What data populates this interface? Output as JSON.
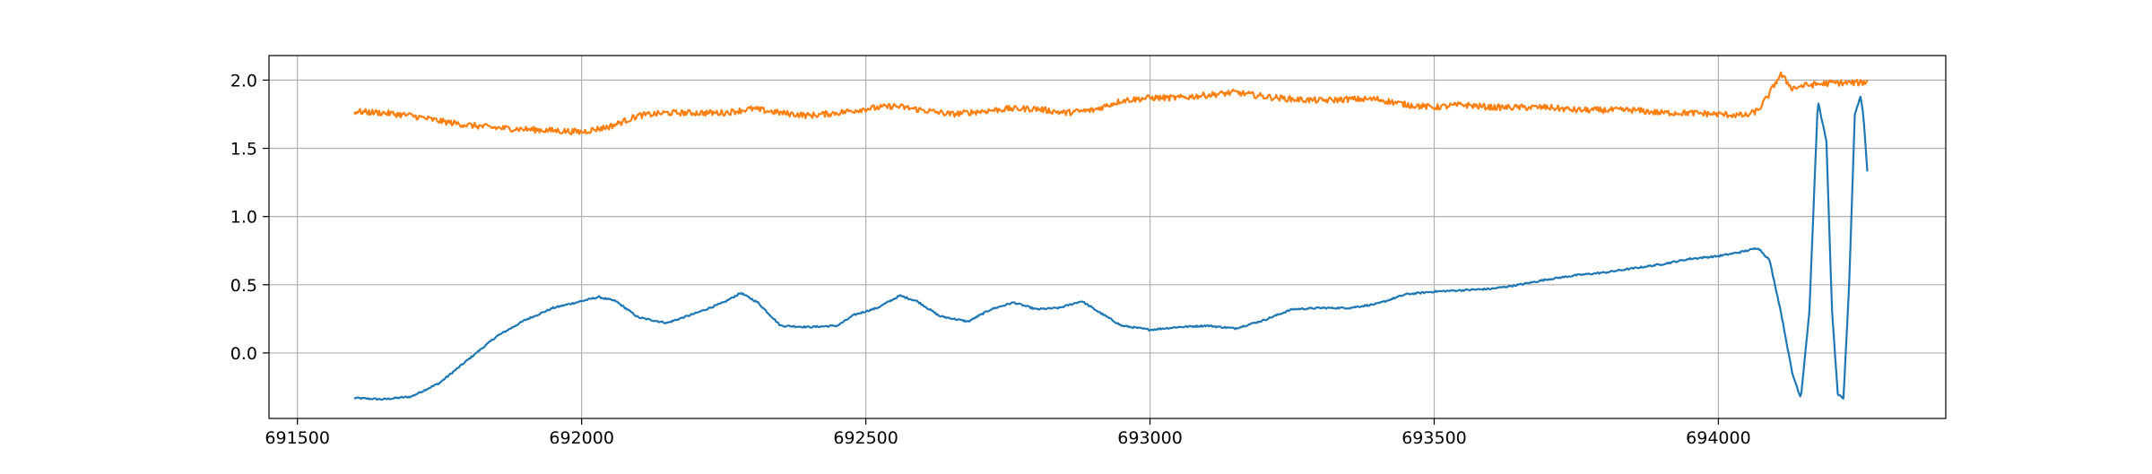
{
  "chart_data": {
    "type": "line",
    "title": "",
    "xlabel": "",
    "ylabel": "",
    "xlim": [
      691450,
      694400
    ],
    "ylim": [
      -0.48,
      2.18
    ],
    "xticks": [
      691500,
      692000,
      692500,
      693000,
      693500,
      694000
    ],
    "xtick_labels": [
      "691500",
      "692000",
      "692500",
      "693000",
      "693500",
      "694000"
    ],
    "yticks": [
      0.0,
      0.5,
      1.0,
      1.5,
      2.0
    ],
    "ytick_labels": [
      "0.0",
      "0.5",
      "1.0",
      "1.5",
      "2.0"
    ],
    "grid": true,
    "legend": "none",
    "series": [
      {
        "color": "#1f77b4",
        "noise": 0.006,
        "x": [
          691600,
          691650,
          691700,
          691750,
          691800,
          691850,
          691900,
          691950,
          692000,
          692030,
          692060,
          692100,
          692150,
          692200,
          692250,
          692280,
          692310,
          692350,
          692400,
          692450,
          692480,
          692520,
          692560,
          692590,
          692630,
          692680,
          692720,
          692760,
          692800,
          692840,
          692880,
          692910,
          692950,
          693000,
          693050,
          693100,
          693150,
          693200,
          693250,
          693300,
          693350,
          693400,
          693450,
          693500,
          693550,
          693600,
          693650,
          693700,
          693750,
          693800,
          693850,
          693900,
          693950,
          694000,
          694040,
          694070,
          694090,
          694110,
          694130,
          694145,
          694160,
          694175,
          694190,
          694200,
          694210,
          694220,
          694230,
          694240,
          694250,
          694255,
          694262
        ],
        "y": [
          -0.33,
          -0.34,
          -0.32,
          -0.22,
          -0.05,
          0.12,
          0.24,
          0.33,
          0.38,
          0.41,
          0.38,
          0.26,
          0.22,
          0.29,
          0.37,
          0.44,
          0.37,
          0.2,
          0.19,
          0.2,
          0.28,
          0.33,
          0.42,
          0.38,
          0.27,
          0.23,
          0.32,
          0.37,
          0.32,
          0.33,
          0.38,
          0.3,
          0.2,
          0.17,
          0.19,
          0.2,
          0.18,
          0.24,
          0.32,
          0.33,
          0.33,
          0.36,
          0.43,
          0.45,
          0.46,
          0.47,
          0.5,
          0.54,
          0.57,
          0.59,
          0.62,
          0.65,
          0.69,
          0.71,
          0.74,
          0.77,
          0.68,
          0.3,
          -0.15,
          -0.33,
          0.3,
          1.85,
          1.55,
          0.3,
          -0.3,
          -0.34,
          0.5,
          1.75,
          1.88,
          1.75,
          1.33
        ]
      },
      {
        "color": "#ff7f0e",
        "noise": 0.022,
        "x": [
          691600,
          691650,
          691700,
          691750,
          691800,
          691850,
          691900,
          691950,
          692000,
          692050,
          692100,
          692150,
          692200,
          692250,
          692300,
          692350,
          692400,
          692450,
          692500,
          692550,
          692600,
          692650,
          692700,
          692750,
          692800,
          692850,
          692900,
          692950,
          693000,
          693050,
          693100,
          693150,
          693200,
          693250,
          693300,
          693350,
          693400,
          693450,
          693500,
          693550,
          693600,
          693650,
          693700,
          693750,
          693800,
          693850,
          693900,
          693950,
          694000,
          694050,
          694070,
          694090,
          694100,
          694110,
          694130,
          694150,
          694200,
          694250,
          694262
        ],
        "y": [
          1.77,
          1.76,
          1.74,
          1.7,
          1.67,
          1.65,
          1.64,
          1.63,
          1.62,
          1.66,
          1.74,
          1.76,
          1.76,
          1.76,
          1.79,
          1.76,
          1.74,
          1.76,
          1.79,
          1.81,
          1.78,
          1.75,
          1.77,
          1.79,
          1.79,
          1.76,
          1.78,
          1.85,
          1.87,
          1.87,
          1.89,
          1.91,
          1.88,
          1.86,
          1.85,
          1.86,
          1.86,
          1.82,
          1.8,
          1.82,
          1.8,
          1.8,
          1.8,
          1.78,
          1.78,
          1.78,
          1.76,
          1.76,
          1.75,
          1.74,
          1.78,
          1.9,
          1.98,
          2.04,
          1.94,
          1.96,
          1.98,
          1.98,
          1.99
        ]
      }
    ]
  }
}
